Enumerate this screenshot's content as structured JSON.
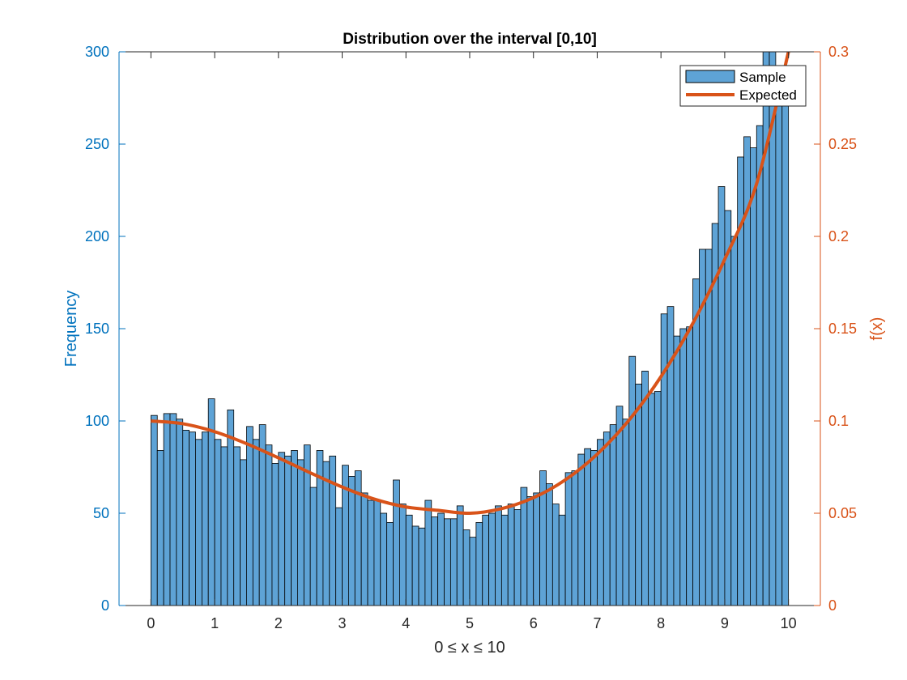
{
  "chart_data": {
    "type": "bar",
    "title": "Distribution over the interval [0,10]",
    "xlabel": "0 ≤ x ≤ 10",
    "ylabel": "Frequency",
    "ylabel_right": "f(x)",
    "xlim": [
      -0.5,
      10.5
    ],
    "ylim": [
      0,
      300
    ],
    "ylim_right": [
      0,
      0.3
    ],
    "x_ticks": [
      0,
      1,
      2,
      3,
      4,
      5,
      6,
      7,
      8,
      9,
      10
    ],
    "y_ticks": [
      0,
      50,
      100,
      150,
      200,
      250,
      300
    ],
    "y_right_ticks": [
      0,
      0.05,
      0.1,
      0.15,
      0.2,
      0.25,
      0.3
    ],
    "y_right_tick_labels": [
      "0",
      "0.05",
      "0.1",
      "0.15",
      "0.2",
      "0.25",
      "0.3"
    ],
    "bin_width": 0.1,
    "bin_start": 0,
    "grid": false,
    "legend_placement": "top-right",
    "colors": {
      "bar": "#5ea3d6",
      "bar_edge": "#000000",
      "line": "#d95319",
      "left_axis": "#0072bd",
      "right_axis": "#d95319"
    },
    "series": [
      {
        "name": "Sample",
        "type": "histogram",
        "values": [
          103,
          84,
          104,
          104,
          101,
          95,
          94,
          90,
          94,
          112,
          90,
          86,
          106,
          86,
          79,
          97,
          90,
          98,
          87,
          77,
          83,
          81,
          84,
          79,
          87,
          64,
          84,
          78,
          81,
          53,
          76,
          70,
          73,
          61,
          57,
          57,
          50,
          45,
          68,
          55,
          49,
          43,
          42,
          57,
          48,
          50,
          47,
          47,
          54,
          41,
          37,
          45,
          49,
          50,
          54,
          49,
          55,
          52,
          64,
          59,
          61,
          73,
          66,
          55,
          49,
          72,
          73,
          82,
          85,
          84,
          90,
          94,
          98,
          108,
          101,
          135,
          120,
          127,
          115,
          116,
          158,
          162,
          146,
          150,
          151,
          177,
          193,
          193,
          207,
          227,
          214,
          200,
          243,
          254,
          248,
          260,
          300,
          300,
          290,
          285
        ]
      },
      {
        "name": "Expected",
        "type": "line",
        "x": [
          0,
          0.5,
          1,
          1.5,
          2,
          2.5,
          3,
          3.5,
          4,
          4.5,
          5,
          5.5,
          6,
          6.5,
          7,
          7.5,
          8,
          8.5,
          9,
          9.5,
          10
        ],
        "y": [
          0.1,
          0.0985,
          0.0942,
          0.0877,
          0.08,
          0.0719,
          0.0642,
          0.0577,
          0.0534,
          0.0516,
          0.05,
          0.0525,
          0.0584,
          0.0681,
          0.082,
          0.1005,
          0.124,
          0.1529,
          0.1876,
          0.2285,
          0.3
        ]
      }
    ]
  }
}
